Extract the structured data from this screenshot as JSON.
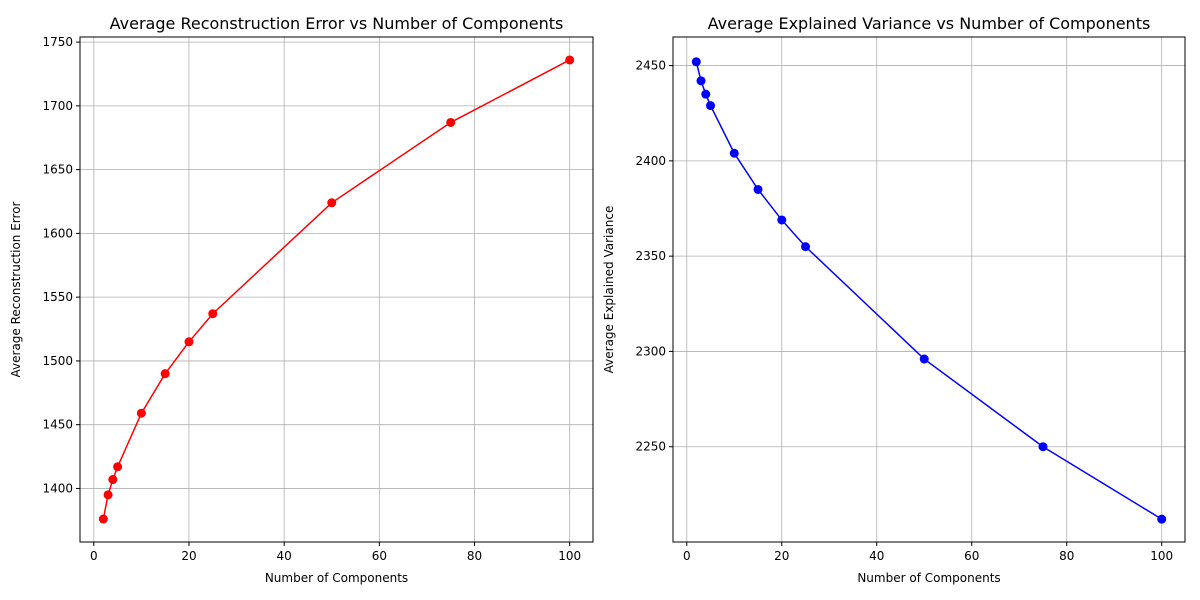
{
  "chart_data": [
    {
      "type": "line",
      "title": "Average Reconstruction Error vs Number of Components",
      "xlabel": "Number of Components",
      "ylabel": "Average Reconstruction Error",
      "xlim": [
        -2.9,
        104.9
      ],
      "ylim": [
        1358,
        1754
      ],
      "xticks": [
        0,
        20,
        40,
        60,
        80,
        100
      ],
      "yticks": [
        1400,
        1450,
        1500,
        1550,
        1600,
        1650,
        1700,
        1750
      ],
      "grid": true,
      "marker": "circle",
      "series": [
        {
          "color": "#ff0000",
          "x": [
            2,
            3,
            4,
            5,
            10,
            15,
            20,
            25,
            50,
            75,
            100
          ],
          "y": [
            1376,
            1395,
            1407,
            1417,
            1459,
            1490,
            1515,
            1537,
            1624,
            1687,
            1736
          ]
        }
      ]
    },
    {
      "type": "line",
      "title": "Average Explained Variance vs Number of Components",
      "xlabel": "Number of Components",
      "ylabel": "Average Explained Variance",
      "xlim": [
        -2.9,
        104.9
      ],
      "ylim": [
        2200,
        2465
      ],
      "xticks": [
        0,
        20,
        40,
        60,
        80,
        100
      ],
      "yticks": [
        2250,
        2300,
        2350,
        2400,
        2450
      ],
      "grid": true,
      "marker": "circle",
      "series": [
        {
          "color": "#0000ff",
          "x": [
            2,
            3,
            4,
            5,
            10,
            15,
            20,
            25,
            50,
            75,
            100
          ],
          "y": [
            2452,
            2442,
            2435,
            2429,
            2404,
            2385,
            2369,
            2355,
            2296,
            2250,
            2212
          ]
        }
      ]
    }
  ]
}
